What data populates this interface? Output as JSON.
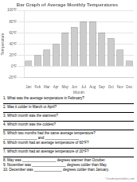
{
  "chart_data": {
    "type": "bar",
    "title": "Bar Graph of Average Monthly Temperatures",
    "xlabel": "Month",
    "ylabel": "Temperature",
    "categories": [
      "Jan",
      "Feb",
      "Mar",
      "Apr",
      "May",
      "Jun",
      "Jul",
      "Aug",
      "Sep",
      "Oct",
      "Nov",
      "Dec"
    ],
    "values": [
      10,
      20,
      30,
      40,
      60,
      70,
      80,
      80,
      60,
      50,
      30,
      10
    ],
    "color": "#cccccc",
    "ylim": [
      -20,
      100
    ],
    "yticks": [
      {
        "value": -20,
        "label": "-20°F"
      },
      {
        "value": 0,
        "label": "0°F"
      },
      {
        "value": 20,
        "label": "20°F"
      },
      {
        "value": 40,
        "label": "40°F"
      },
      {
        "value": 60,
        "label": "60°F"
      },
      {
        "value": 80,
        "label": "80°F"
      },
      {
        "value": 100,
        "label": "100°F"
      }
    ],
    "grid": true,
    "annotations": [
      "1. What was the average temperature in February?",
      "2. Was it colder in March or April?",
      "3. Which month was the warmest?",
      "4. Which month was the coldest?",
      "5. Which two months had the same average temperature?",
      "_________________ and _________________",
      "6. Which month had an average temperature of 60°F?",
      "7. Which month had an average temperature of 20°F?",
      "8. May was _________________ degrees warmer than October.",
      "9. November was _________________ degrees colder than May.",
      "10. December was ______________ degrees colder than January.",
      "©studentprintables.com"
    ]
  }
}
